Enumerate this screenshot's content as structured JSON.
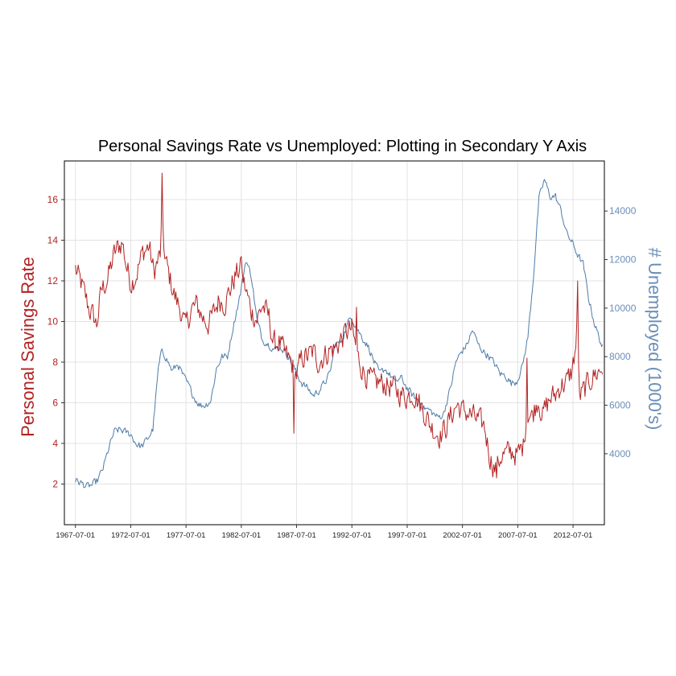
{
  "chart_data": {
    "type": "line",
    "title": "Personal Savings Rate vs Unemployed: Plotting in Secondary Y Axis",
    "xlabel": "",
    "ylabel_left": "Personal Savings Rate",
    "ylabel_right": "# Unemployed (1000's)",
    "x_tick_labels": [
      "1967-07-01",
      "1972-07-01",
      "1977-07-01",
      "1982-07-01",
      "1987-07-01",
      "1992-07-01",
      "1997-07-01",
      "2002-07-01",
      "2007-07-01",
      "2012-07-01"
    ],
    "xlim": [
      "1966-07-01",
      "2015-05-01"
    ],
    "ylim_left": [
      0,
      17.9
    ],
    "yticks_left": [
      2,
      4,
      6,
      8,
      10,
      12,
      14,
      16
    ],
    "ylim_right": [
      1077,
      16063
    ],
    "yticks_right": [
      4000,
      6000,
      8000,
      10000,
      12000,
      14000
    ],
    "grid": true,
    "colors": {
      "left_series": "#b22222",
      "right_series": "#4f7ba8",
      "right_axis_text": "#6b8fb8"
    },
    "series": [
      {
        "axis": "left",
        "anchors": [
          [
            "1967-07-01",
            12.6
          ],
          [
            "1967-10-01",
            12.2
          ],
          [
            "1968-01-01",
            11.9
          ],
          [
            "1968-06-01",
            11.2
          ],
          [
            "1968-10-01",
            10.6
          ],
          [
            "1969-03-01",
            10.2
          ],
          [
            "1969-06-01",
            9.8
          ],
          [
            "1969-11-01",
            11.5
          ],
          [
            "1970-06-01",
            12.1
          ],
          [
            "1971-01-01",
            13.3
          ],
          [
            "1971-06-01",
            13.7
          ],
          [
            "1971-10-01",
            13.9
          ],
          [
            "1972-02-01",
            12.8
          ],
          [
            "1972-07-01",
            11.9
          ],
          [
            "1973-01-01",
            12.3
          ],
          [
            "1973-08-01",
            13.4
          ],
          [
            "1974-03-01",
            13.7
          ],
          [
            "1974-08-01",
            12.4
          ],
          [
            "1975-03-01",
            13.3
          ],
          [
            "1975-05-01",
            15.2
          ],
          [
            "1975-08-01",
            13.1
          ],
          [
            "1976-01-01",
            12.2
          ],
          [
            "1976-07-01",
            11.2
          ],
          [
            "1977-01-01",
            10.6
          ],
          [
            "1977-06-01",
            9.7
          ],
          [
            "1978-01-01",
            10.6
          ],
          [
            "1978-07-01",
            10.8
          ],
          [
            "1979-01-01",
            10.2
          ],
          [
            "1979-07-01",
            9.9
          ],
          [
            "1980-01-01",
            10.4
          ],
          [
            "1980-07-01",
            11.1
          ],
          [
            "1981-01-01",
            10.9
          ],
          [
            "1981-07-01",
            11.6
          ],
          [
            "1982-01-01",
            12.3
          ],
          [
            "1982-06-01",
            12.6
          ],
          [
            "1982-12-01",
            11.5
          ],
          [
            "1983-06-01",
            10.5
          ],
          [
            "1983-12-01",
            10.1
          ],
          [
            "1984-06-01",
            10.8
          ],
          [
            "1985-01-01",
            10.2
          ],
          [
            "1985-06-01",
            8.9
          ],
          [
            "1985-12-01",
            9.0
          ],
          [
            "1986-06-01",
            8.4
          ],
          [
            "1987-01-01",
            8.0
          ],
          [
            "1987-07-01",
            7.4
          ],
          [
            "1988-01-01",
            8.2
          ],
          [
            "1988-07-01",
            8.3
          ],
          [
            "1989-01-01",
            8.5
          ],
          [
            "1989-07-01",
            8.0
          ],
          [
            "1990-01-01",
            8.3
          ],
          [
            "1990-07-01",
            8.6
          ],
          [
            "1991-01-01",
            8.7
          ],
          [
            "1991-07-01",
            9.1
          ],
          [
            "1992-01-01",
            9.5
          ],
          [
            "1992-07-01",
            9.6
          ],
          [
            "1993-01-01",
            8.3
          ],
          [
            "1993-07-01",
            7.6
          ],
          [
            "1994-01-01",
            7.2
          ],
          [
            "1994-07-01",
            7.0
          ],
          [
            "1995-01-01",
            7.0
          ],
          [
            "1995-07-01",
            6.9
          ],
          [
            "1996-01-01",
            6.8
          ],
          [
            "1996-07-01",
            6.6
          ],
          [
            "1997-01-01",
            6.4
          ],
          [
            "1997-07-01",
            6.3
          ],
          [
            "1998-01-01",
            6.5
          ],
          [
            "1998-07-01",
            6.1
          ],
          [
            "1999-01-01",
            5.6
          ],
          [
            "1999-07-01",
            5.0
          ],
          [
            "2000-01-01",
            4.6
          ],
          [
            "2000-07-01",
            4.4
          ],
          [
            "2001-01-01",
            4.8
          ],
          [
            "2001-07-01",
            5.4
          ],
          [
            "2002-01-01",
            5.9
          ],
          [
            "2002-07-01",
            5.6
          ],
          [
            "2003-01-01",
            5.5
          ],
          [
            "2003-07-01",
            5.3
          ],
          [
            "2004-01-01",
            5.1
          ],
          [
            "2004-07-01",
            4.8
          ],
          [
            "2005-01-01",
            3.3
          ],
          [
            "2005-07-01",
            2.7
          ],
          [
            "2006-01-01",
            3.4
          ],
          [
            "2006-07-01",
            3.5
          ],
          [
            "2007-01-01",
            3.6
          ],
          [
            "2007-07-01",
            3.4
          ],
          [
            "2008-01-01",
            3.9
          ],
          [
            "2008-05-01",
            5.6
          ],
          [
            "2008-10-01",
            5.3
          ],
          [
            "2009-05-01",
            6.2
          ],
          [
            "2009-10-01",
            5.4
          ],
          [
            "2010-06-01",
            6.2
          ],
          [
            "2010-12-01",
            6.4
          ],
          [
            "2011-06-01",
            6.9
          ],
          [
            "2011-12-01",
            7.0
          ],
          [
            "2012-06-01",
            7.6
          ],
          [
            "2012-10-01",
            8.8
          ],
          [
            "2012-12-01",
            10.2
          ],
          [
            "2013-02-01",
            6.2
          ],
          [
            "2013-07-01",
            6.6
          ],
          [
            "2014-01-01",
            7.1
          ],
          [
            "2014-07-01",
            7.4
          ],
          [
            "2015-01-01",
            7.6
          ],
          [
            "2015-03-01",
            7.7
          ]
        ],
        "spikes": [
          [
            "1975-05-01",
            17.3
          ],
          [
            "1982-07-01",
            13.2
          ],
          [
            "1987-04-01",
            4.5
          ],
          [
            "1992-12-01",
            10.7
          ],
          [
            "2005-08-01",
            2.3
          ],
          [
            "2008-05-01",
            8.2
          ],
          [
            "2012-12-01",
            12.0
          ]
        ],
        "values_note": ""
      },
      {
        "axis": "right",
        "anchors": [
          [
            "1967-07-01",
            2900
          ],
          [
            "1968-01-01",
            2800
          ],
          [
            "1968-07-01",
            2650
          ],
          [
            "1969-01-01",
            2700
          ],
          [
            "1969-07-01",
            2900
          ],
          [
            "1970-01-01",
            3400
          ],
          [
            "1970-07-01",
            4200
          ],
          [
            "1971-01-01",
            4900
          ],
          [
            "1971-07-01",
            5000
          ],
          [
            "1972-01-01",
            4900
          ],
          [
            "1972-07-01",
            4800
          ],
          [
            "1973-01-01",
            4400
          ],
          [
            "1973-07-01",
            4300
          ],
          [
            "1974-01-01",
            4600
          ],
          [
            "1974-07-01",
            5000
          ],
          [
            "1975-01-01",
            7500
          ],
          [
            "1975-05-01",
            8300
          ],
          [
            "1975-10-01",
            7900
          ],
          [
            "1976-04-01",
            7400
          ],
          [
            "1976-10-01",
            7700
          ],
          [
            "1977-04-01",
            7200
          ],
          [
            "1977-10-01",
            6800
          ],
          [
            "1978-04-01",
            6300
          ],
          [
            "1978-10-01",
            6000
          ],
          [
            "1979-04-01",
            6000
          ],
          [
            "1979-10-01",
            6200
          ],
          [
            "1980-04-01",
            7500
          ],
          [
            "1980-10-01",
            8000
          ],
          [
            "1981-04-01",
            8000
          ],
          [
            "1981-10-01",
            9200
          ],
          [
            "1982-06-01",
            10600
          ],
          [
            "1982-12-01",
            12000
          ],
          [
            "1983-06-01",
            11300
          ],
          [
            "1983-12-01",
            9500
          ],
          [
            "1984-06-01",
            8700
          ],
          [
            "1985-01-01",
            8500
          ],
          [
            "1985-07-01",
            8300
          ],
          [
            "1986-01-01",
            8400
          ],
          [
            "1986-07-01",
            8200
          ],
          [
            "1987-01-01",
            7800
          ],
          [
            "1987-07-01",
            7300
          ],
          [
            "1988-01-01",
            6900
          ],
          [
            "1988-07-01",
            6700
          ],
          [
            "1989-01-01",
            6400
          ],
          [
            "1989-07-01",
            6600
          ],
          [
            "1990-01-01",
            6900
          ],
          [
            "1990-07-01",
            7300
          ],
          [
            "1991-01-01",
            8500
          ],
          [
            "1991-07-01",
            8600
          ],
          [
            "1992-06-01",
            9700
          ],
          [
            "1992-12-01",
            9200
          ],
          [
            "1993-06-01",
            8800
          ],
          [
            "1994-01-01",
            8400
          ],
          [
            "1994-07-01",
            7800
          ],
          [
            "1995-01-01",
            7300
          ],
          [
            "1995-07-01",
            7500
          ],
          [
            "1996-01-01",
            7200
          ],
          [
            "1996-07-01",
            7000
          ],
          [
            "1997-01-01",
            7100
          ],
          [
            "1997-07-01",
            6700
          ],
          [
            "1998-01-01",
            6400
          ],
          [
            "1998-07-01",
            6200
          ],
          [
            "1999-01-01",
            5900
          ],
          [
            "1999-07-01",
            5800
          ],
          [
            "2000-04-01",
            5500
          ],
          [
            "2000-10-01",
            5600
          ],
          [
            "2001-06-01",
            6700
          ],
          [
            "2001-12-01",
            7800
          ],
          [
            "2002-06-01",
            8200
          ],
          [
            "2002-12-01",
            8500
          ],
          [
            "2003-06-01",
            9100
          ],
          [
            "2003-12-01",
            8500
          ],
          [
            "2004-06-01",
            8200
          ],
          [
            "2004-12-01",
            8000
          ],
          [
            "2005-06-01",
            7700
          ],
          [
            "2005-12-01",
            7300
          ],
          [
            "2006-06-01",
            7200
          ],
          [
            "2006-12-01",
            6900
          ],
          [
            "2007-06-01",
            7000
          ],
          [
            "2007-12-01",
            7600
          ],
          [
            "2008-06-01",
            8800
          ],
          [
            "2008-12-01",
            11300
          ],
          [
            "2009-06-01",
            14500
          ],
          [
            "2009-12-01",
            15300
          ],
          [
            "2010-06-01",
            14600
          ],
          [
            "2010-12-01",
            14600
          ],
          [
            "2011-06-01",
            14000
          ],
          [
            "2011-12-01",
            13100
          ],
          [
            "2012-06-01",
            12700
          ],
          [
            "2012-12-01",
            12200
          ],
          [
            "2013-06-01",
            11800
          ],
          [
            "2013-12-01",
            10400
          ],
          [
            "2014-06-01",
            9400
          ],
          [
            "2014-12-01",
            8700
          ],
          [
            "2015-03-01",
            8400
          ]
        ],
        "values_note": ""
      }
    ]
  }
}
